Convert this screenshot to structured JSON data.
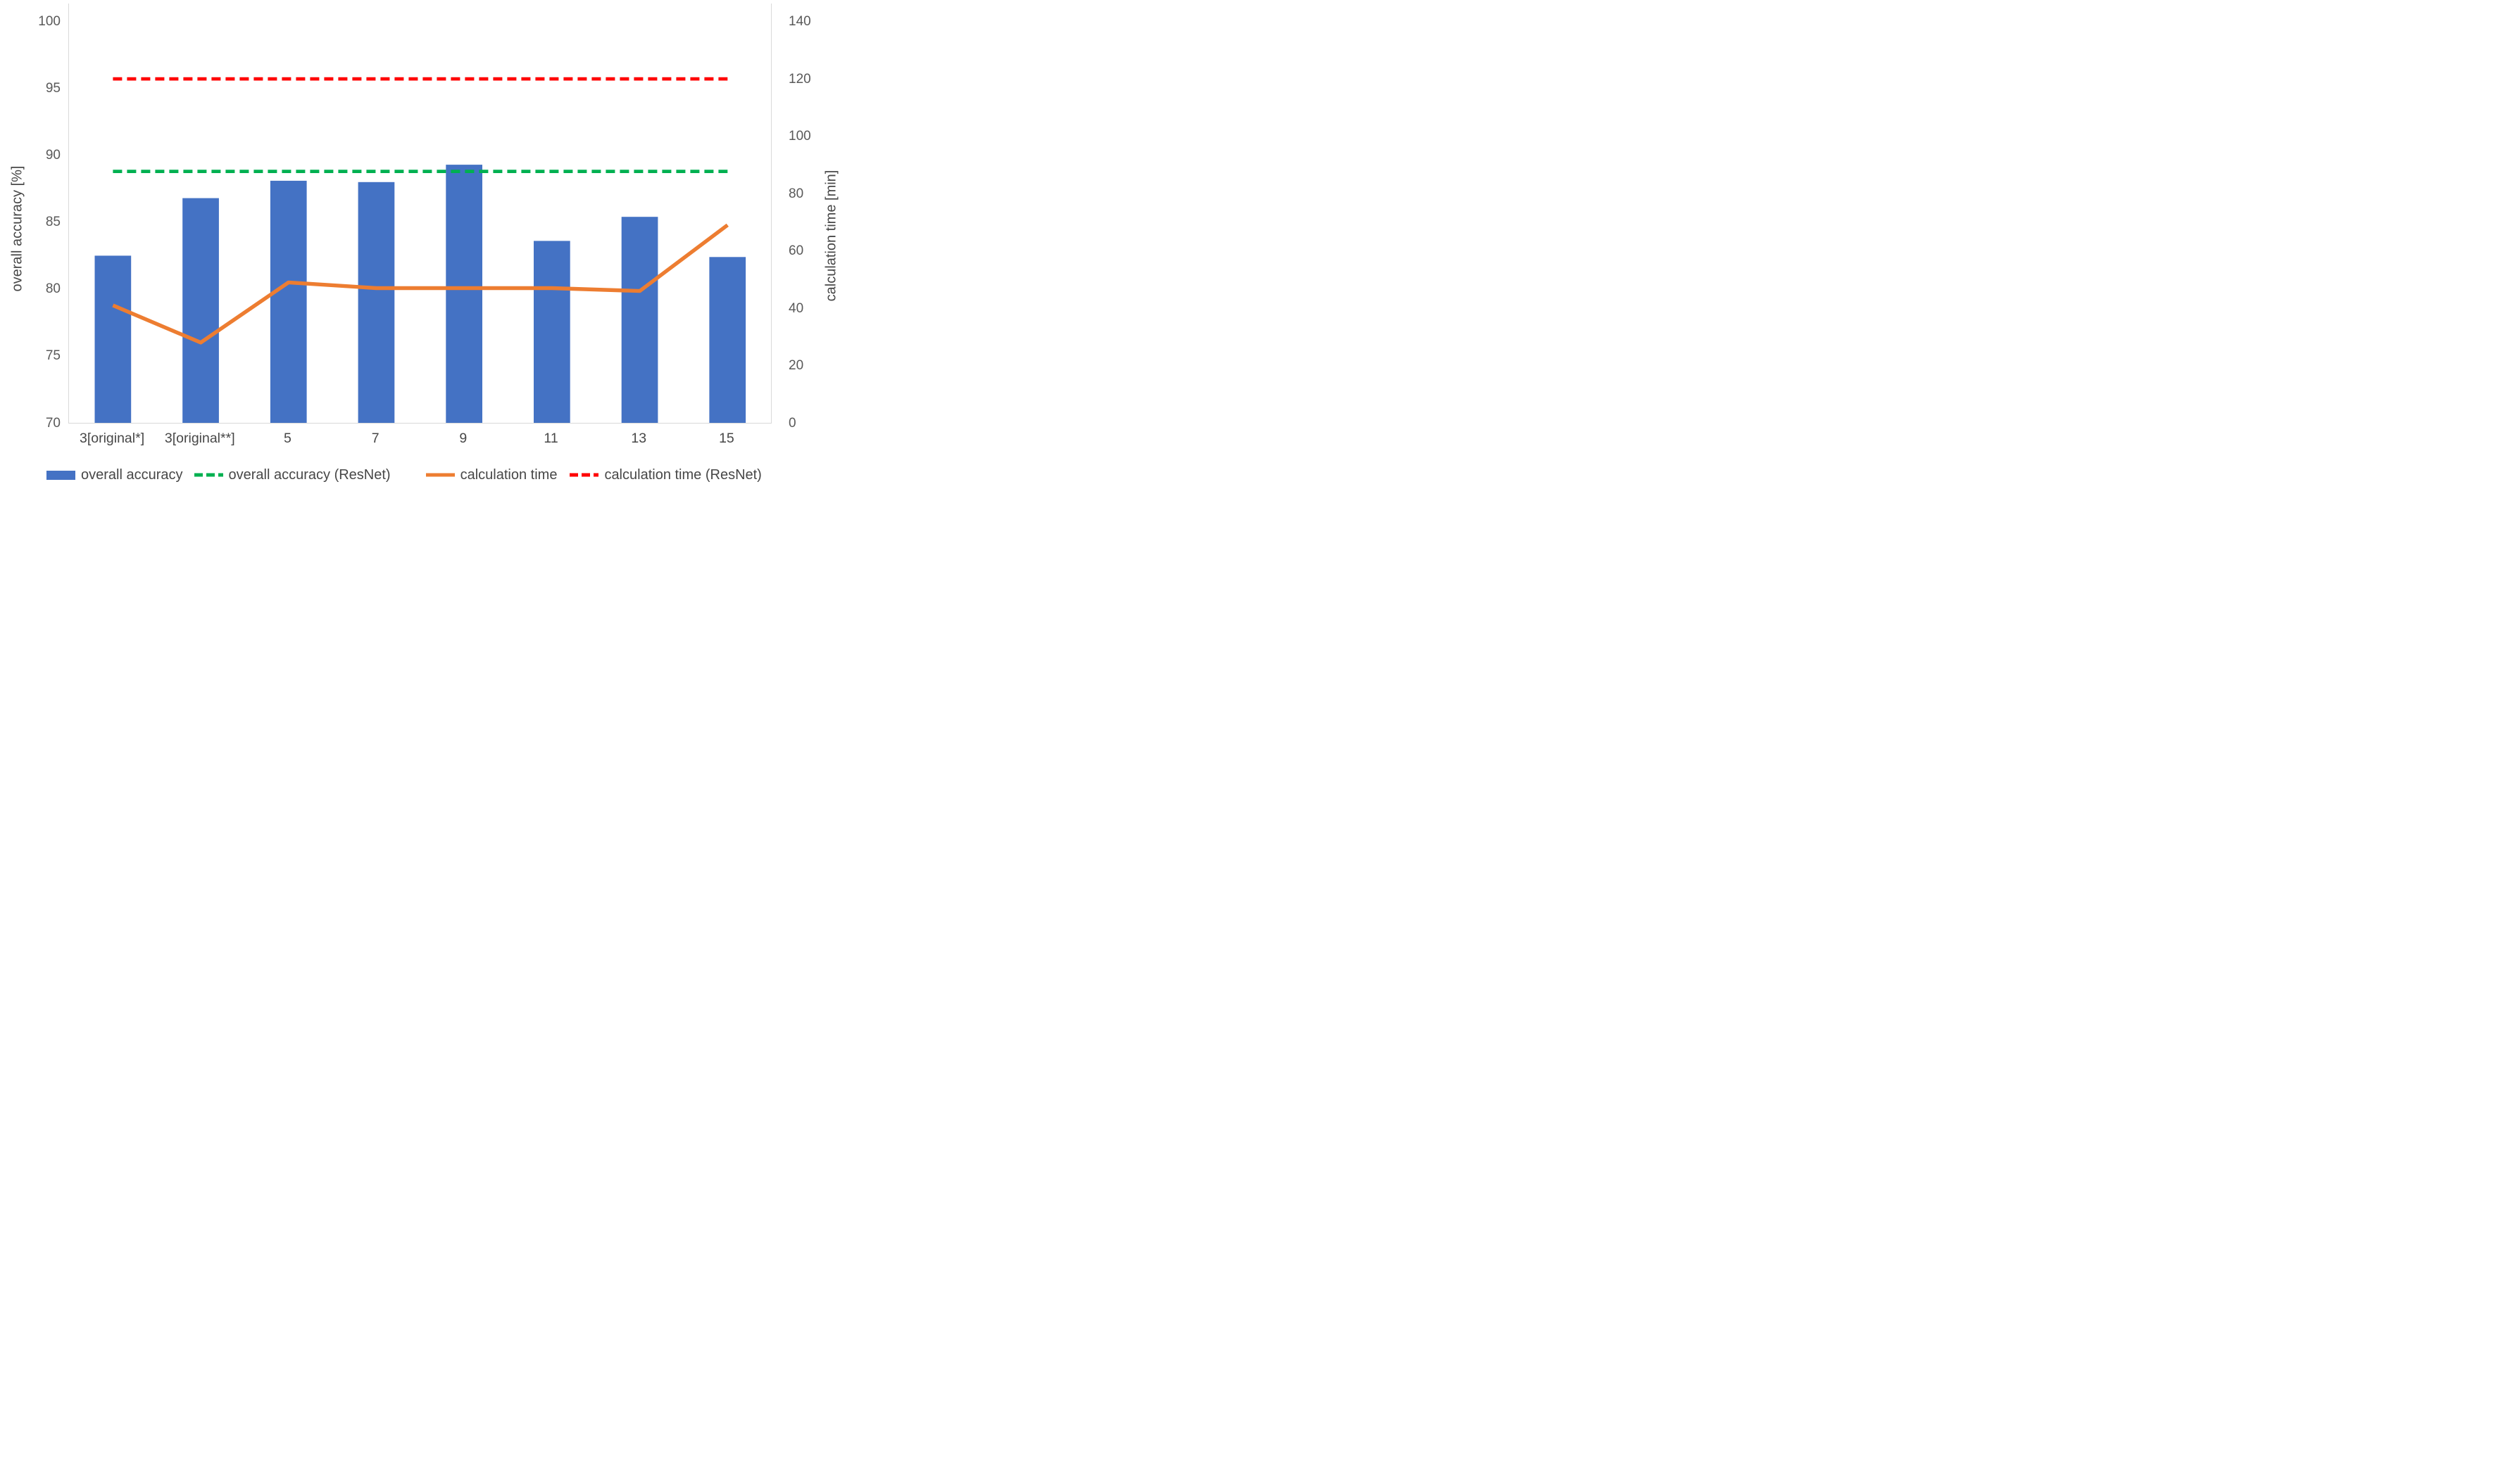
{
  "chart_data": {
    "type": "bar",
    "title": "",
    "categories": [
      "3[original*]",
      "3[original**]",
      "5",
      "7",
      "9",
      "11",
      "13",
      "15"
    ],
    "series": [
      {
        "name": "overall accuracy",
        "type": "bar",
        "axis": "left",
        "color": "#4472C4",
        "values": [
          82.5,
          86.8,
          88.1,
          88.0,
          89.3,
          83.6,
          85.4,
          82.4
        ]
      },
      {
        "name": "overall accuracy (ResNet)",
        "type": "dashed-line",
        "axis": "left",
        "color": "#00B050",
        "values": [
          88.8,
          88.8,
          88.8,
          88.8,
          88.8,
          88.8,
          88.8,
          88.8
        ],
        "constant": 88.8
      },
      {
        "name": "calculation time",
        "type": "line",
        "axis": "right",
        "color": "#ED7D31",
        "values": [
          41,
          28,
          49,
          47,
          47,
          47,
          46,
          69
        ]
      },
      {
        "name": "calculation time (ResNet)",
        "type": "dashed-line",
        "axis": "right",
        "color": "#FF0000",
        "values": [
          120,
          120,
          120,
          120,
          120,
          120,
          120,
          120
        ],
        "constant": 120
      }
    ],
    "left_axis": {
      "label": "overall accuracy [%]",
      "min": 70,
      "max": 100,
      "tick_step": 5,
      "ticks": [
        "70",
        "75",
        "80",
        "85",
        "90",
        "95",
        "100"
      ]
    },
    "right_axis": {
      "label": "calculation time [min]",
      "min": 0,
      "max": 140,
      "tick_step": 20,
      "ticks": [
        "0",
        "20",
        "40",
        "60",
        "80",
        "100",
        "120",
        "140"
      ]
    },
    "legend_position": "bottom",
    "grid": false
  },
  "colors": {
    "bar_blue": "#4472C4",
    "line_orange": "#ED7D31",
    "dashed_green": "#00B050",
    "dashed_red": "#FF0000",
    "axis_line": "#D9D9D9",
    "text": "#595959"
  }
}
